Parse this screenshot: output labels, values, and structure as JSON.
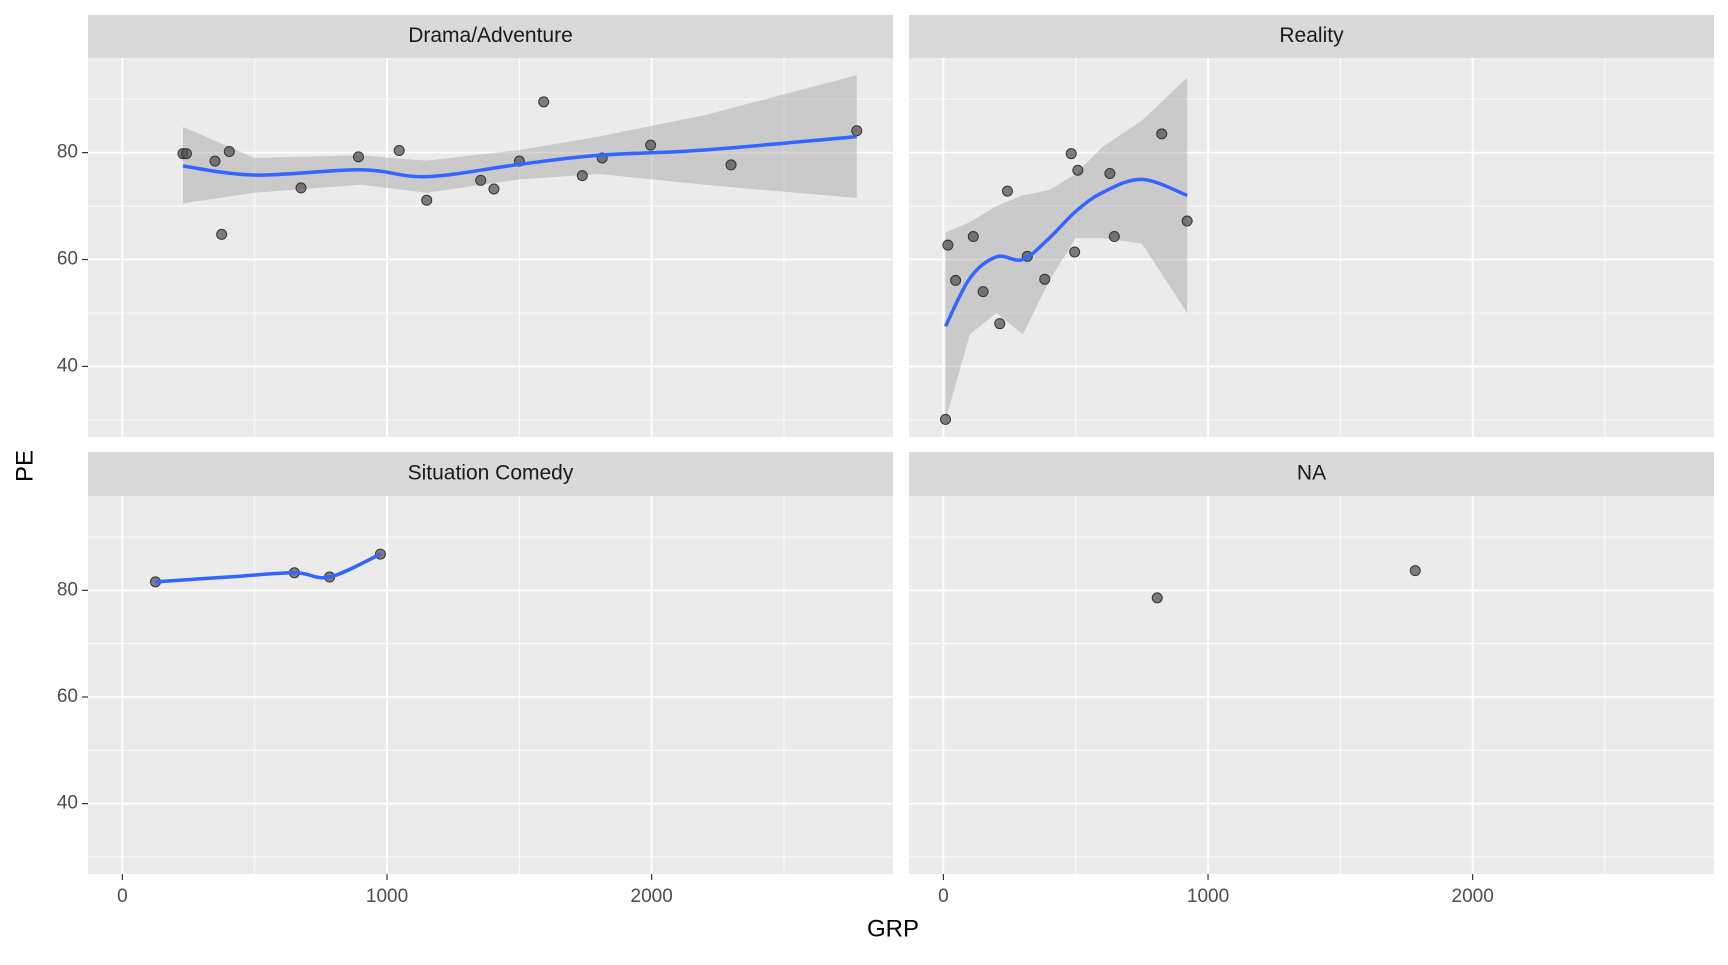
{
  "chart_data": {
    "type": "scatter",
    "x_label": "GRP",
    "y_label": "PE",
    "xlim": [
      -130,
      2912
    ],
    "ylim": [
      26.8,
      97.7
    ],
    "xticks": [
      0,
      1000,
      2000
    ],
    "yticks": [
      40,
      60,
      80
    ],
    "xminor": [
      500,
      1500,
      2500
    ],
    "yminor": [
      30,
      50,
      70,
      90
    ],
    "grid": true,
    "point_color": "#4d4d4d",
    "line_color": "#3366ff",
    "band_color": "#999999",
    "facets": [
      {
        "strip": "Drama/Adventure",
        "x": [
          229,
          242,
          350,
          375,
          404,
          675,
          892,
          1046,
          1150,
          1354,
          1404,
          1500,
          1592,
          1738,
          1813,
          1996,
          2300,
          2775
        ],
        "y": [
          79.8,
          79.8,
          78.4,
          64.7,
          80.2,
          73.4,
          79.2,
          80.4,
          71.1,
          74.8,
          73.2,
          78.4,
          89.5,
          75.7,
          79.0,
          81.4,
          77.7,
          84.1
        ],
        "smooth_x": [
          229,
          500,
          900,
          1150,
          1500,
          1800,
          2200,
          2775
        ],
        "smooth_y": [
          77.5,
          75.8,
          76.8,
          75.5,
          77.8,
          79.5,
          80.5,
          83
        ],
        "band_lower": [
          70.5,
          72.5,
          74,
          72.5,
          75,
          76,
          74,
          71.5
        ],
        "band_upper": [
          84.8,
          79,
          79.5,
          78.5,
          80.5,
          83,
          87,
          94.5
        ]
      },
      {
        "strip": "Reality",
        "x": [
          17,
          46,
          113,
          150,
          213,
          242,
          317,
          383,
          483,
          496,
          508,
          629,
          646,
          825,
          921,
          8
        ],
        "y": [
          62.7,
          56.1,
          64.3,
          54.0,
          48.0,
          72.8,
          60.6,
          56.3,
          79.8,
          61.4,
          76.7,
          76.1,
          64.3,
          83.5,
          67.2,
          30.1
        ],
        "smooth_x": [
          8,
          100,
          200,
          300,
          400,
          500,
          600,
          750,
          921
        ],
        "smooth_y": [
          47.5,
          56.5,
          60.5,
          60,
          64,
          69,
          72.5,
          75,
          72
        ],
        "band_lower": [
          30,
          46,
          50,
          46,
          56,
          64,
          64,
          63,
          50
        ],
        "band_upper": [
          65,
          67,
          70,
          72,
          73,
          76,
          81,
          86,
          94
        ]
      },
      {
        "strip": "Situation Comedy",
        "x": [
          125,
          650,
          783,
          975
        ],
        "y": [
          81.6,
          83.3,
          82.5,
          86.8
        ],
        "smooth_x": [
          125,
          400,
          650,
          783,
          975
        ],
        "smooth_y": [
          81.6,
          82.5,
          83.3,
          82.5,
          86.8
        ]
      },
      {
        "strip": "NA",
        "x": [
          808,
          1783
        ],
        "y": [
          78.6,
          83.7
        ]
      }
    ]
  }
}
